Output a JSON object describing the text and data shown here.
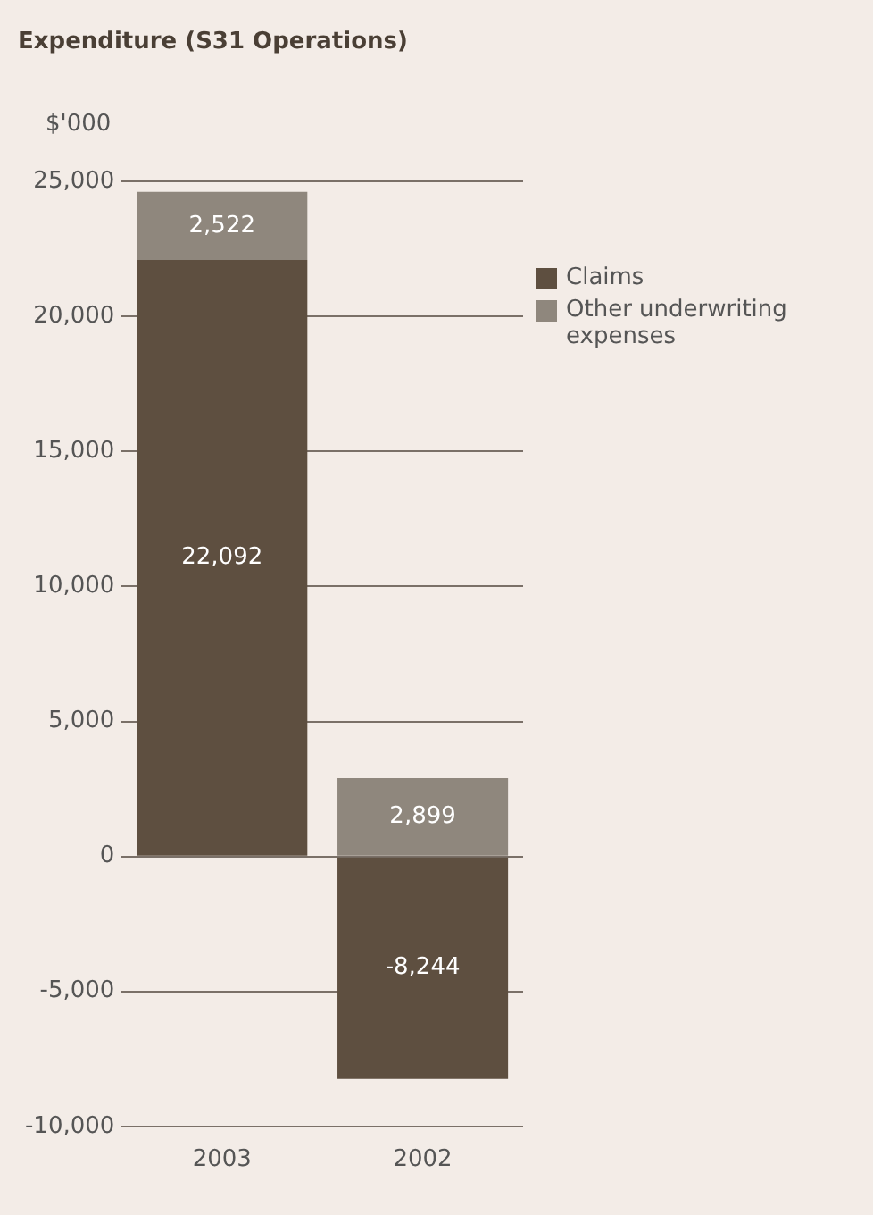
{
  "chart_data": {
    "type": "bar",
    "title": "Expenditure (S31 Operations)",
    "ylabel": "$'000",
    "categories": [
      "2003",
      "2002"
    ],
    "stacked": true,
    "series": [
      {
        "name": "Claims",
        "color": "#5e4f40",
        "values": [
          22092,
          -8244
        ],
        "value_labels": [
          "22,092",
          "-8,244"
        ]
      },
      {
        "name": "Other underwriting expenses",
        "color": "#8f877d",
        "values": [
          2522,
          2899
        ],
        "value_labels": [
          "2,522",
          "2,899"
        ]
      }
    ],
    "ylim": [
      -10000,
      25000
    ],
    "yticks": [
      {
        "value": -10000,
        "label": "-10,000"
      },
      {
        "value": -5000,
        "label": "-5,000"
      },
      0,
      {
        "value": 5000,
        "label": "5,000"
      },
      {
        "value": 10000,
        "label": "10,000"
      },
      {
        "value": 15000,
        "label": "15,000"
      },
      {
        "value": 20000,
        "label": "20,000"
      },
      {
        "value": 25000,
        "label": "25,000"
      }
    ],
    "grid": "y",
    "legend": "right"
  }
}
